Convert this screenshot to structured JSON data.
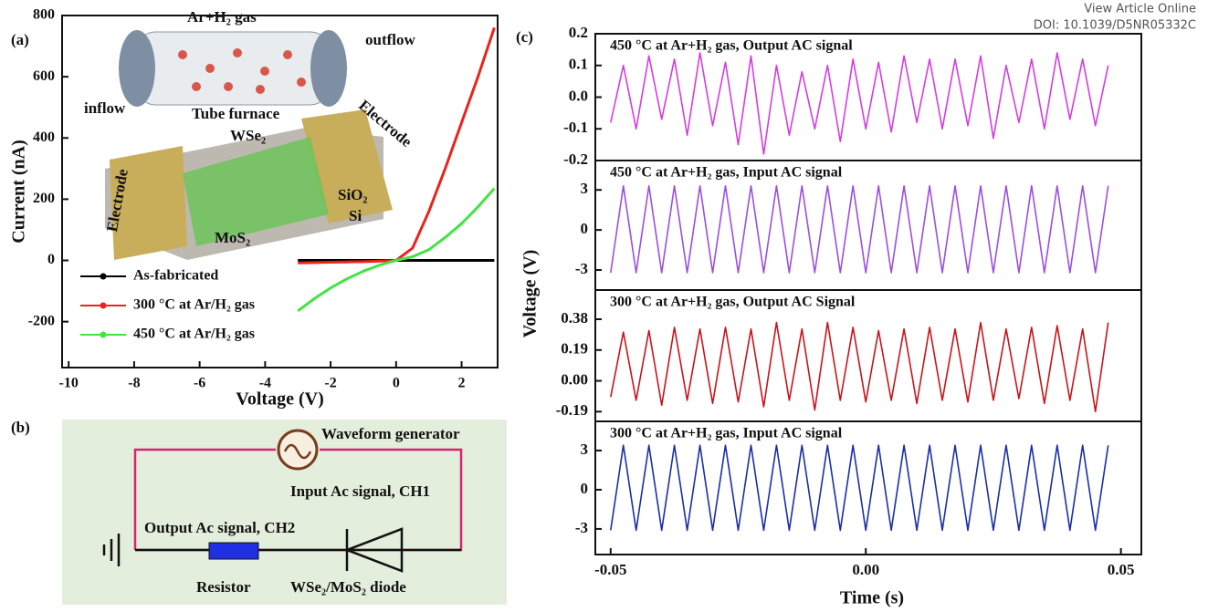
{
  "header": {
    "link": "View Article Online",
    "doi": "DOI: 10.1039/D5NR05332C"
  },
  "panel_a": {
    "label": "(a)",
    "illustration": {
      "gas": "Ar+H₂ gas",
      "outflow": "outflow",
      "inflow": "inflow",
      "furnace": "Tube furnace",
      "wse2": "WSe₂",
      "electrode_right": "Electrode",
      "electrode_left": "Electrode",
      "sio2": "SiO₂",
      "si": "Si",
      "mos2": "MoS₂"
    }
  },
  "panel_b": {
    "label": "(b)",
    "generator": "Waveform generator",
    "input": "Input Ac signal, CH1",
    "output": "Output Ac signal, CH2",
    "resistor": "Resistor",
    "diode": "WSe₂/MoS₂ diode"
  },
  "panel_c": {
    "label": "(c)",
    "ylabel": "Voltage (V)",
    "xlabel": "Time (s)"
  },
  "chart_data": [
    {
      "type": "line",
      "xlabel": "Voltage (V)",
      "ylabel": "Current (nA)",
      "xlim": [
        -10.2,
        3.1
      ],
      "ylim": [
        -350,
        800
      ],
      "xticks": [
        -10,
        -8,
        -6,
        -4,
        -2,
        0,
        2
      ],
      "yticks": [
        -200,
        0,
        200,
        400,
        600,
        800
      ],
      "legend": "lower left",
      "x": [
        -3,
        -2.5,
        -2,
        -1.5,
        -1,
        -0.5,
        0,
        0.5,
        1,
        1.5,
        2,
        2.5,
        3
      ],
      "series": [
        {
          "name": "As-fabricated",
          "color": "#000000",
          "values": [
            0,
            0,
            0,
            0,
            0,
            0,
            0,
            0,
            0,
            0,
            0,
            0,
            0
          ]
        },
        {
          "name": "300 °C at Ar/H₂ gas",
          "color": "#e8251d",
          "values": [
            -8,
            -7,
            -6,
            -5,
            -4,
            -2,
            0,
            40,
            160,
            300,
            450,
            600,
            760
          ]
        },
        {
          "name": "450 °C at Ar/H₂ gas",
          "color": "#44e344",
          "values": [
            -165,
            -125,
            -90,
            -60,
            -35,
            -15,
            0,
            12,
            35,
            75,
            120,
            175,
            235
          ]
        }
      ]
    },
    {
      "type": "line",
      "title": "450 °C at Ar+H₂ gas, Output AC signal",
      "xlim": [
        -0.053,
        0.054
      ],
      "ylim": [
        -0.2,
        0.2
      ],
      "yticks": [
        -0.2,
        -0.1,
        {
          "value": 0,
          "label": "0.0"
        },
        0.1,
        0.2
      ],
      "x": [
        -0.05,
        -0.0475,
        -0.045,
        -0.0425,
        -0.04,
        -0.0375,
        -0.035,
        -0.0325,
        -0.03,
        -0.0275,
        -0.025,
        -0.0225,
        -0.02,
        -0.0175,
        -0.015,
        -0.0125,
        -0.01,
        -0.0075,
        -0.005,
        -0.0025,
        0,
        0.0025,
        0.005,
        0.0075,
        0.01,
        0.0125,
        0.015,
        0.0175,
        0.02,
        0.0225,
        0.025,
        0.0275,
        0.03,
        0.0325,
        0.035,
        0.0375,
        0.04,
        0.0425,
        0.045,
        0.0475
      ],
      "series": [
        {
          "color": "#d43de0",
          "values": [
            -0.08,
            0.1,
            -0.1,
            0.13,
            -0.07,
            0.12,
            -0.12,
            0.14,
            -0.09,
            0.11,
            -0.15,
            0.13,
            -0.18,
            0.1,
            -0.12,
            0.08,
            -0.1,
            0.1,
            -0.14,
            0.12,
            -0.1,
            0.11,
            -0.11,
            0.13,
            -0.08,
            0.12,
            -0.1,
            0.12,
            -0.09,
            0.13,
            -0.13,
            0.1,
            -0.08,
            0.12,
            -0.1,
            0.14,
            -0.07,
            0.12,
            -0.09,
            0.1
          ]
        }
      ]
    },
    {
      "type": "line",
      "title": "450 °C at Ar+H₂ gas, Input AC signal",
      "xlim": [
        -0.053,
        0.054
      ],
      "ylim": [
        -4.5,
        5.2
      ],
      "yticks": [
        -3,
        0,
        3
      ],
      "x": [
        -0.05,
        -0.0475,
        -0.045,
        -0.0425,
        -0.04,
        -0.0375,
        -0.035,
        -0.0325,
        -0.03,
        -0.0275,
        -0.025,
        -0.0225,
        -0.02,
        -0.0175,
        -0.015,
        -0.0125,
        -0.01,
        -0.0075,
        -0.005,
        -0.0025,
        0,
        0.0025,
        0.005,
        0.0075,
        0.01,
        0.0125,
        0.015,
        0.0175,
        0.02,
        0.0225,
        0.025,
        0.0275,
        0.03,
        0.0325,
        0.035,
        0.0375,
        0.04,
        0.0425,
        0.045,
        0.0475
      ],
      "series": [
        {
          "color": "#9b4fe0",
          "values": [
            -3.2,
            3.3,
            -3.2,
            3.3,
            -3.2,
            3.3,
            -3.2,
            3.3,
            -3.2,
            3.3,
            -3.2,
            3.3,
            -3.2,
            3.3,
            -3.2,
            3.3,
            -3.2,
            3.3,
            -3.2,
            3.3,
            -3.2,
            3.3,
            -3.2,
            3.3,
            -3.2,
            3.3,
            -3.2,
            3.3,
            -3.2,
            3.3,
            -3.2,
            3.3,
            -3.2,
            3.3,
            -3.2,
            3.3,
            -3.2,
            3.3,
            -3.2,
            3.3
          ]
        }
      ]
    },
    {
      "type": "line",
      "title": "300 °C at Ar+H₂ gas, Output AC Signal",
      "xlim": [
        -0.053,
        0.054
      ],
      "ylim": [
        -0.25,
        0.56
      ],
      "yticks": [
        -0.19,
        {
          "value": 0,
          "label": "0.00"
        },
        0.19,
        0.38
      ],
      "x": [
        -0.05,
        -0.0475,
        -0.045,
        -0.0425,
        -0.04,
        -0.0375,
        -0.035,
        -0.0325,
        -0.03,
        -0.0275,
        -0.025,
        -0.0225,
        -0.02,
        -0.0175,
        -0.015,
        -0.0125,
        -0.01,
        -0.0075,
        -0.005,
        -0.0025,
        0,
        0.0025,
        0.005,
        0.0075,
        0.01,
        0.0125,
        0.015,
        0.0175,
        0.02,
        0.0225,
        0.025,
        0.0275,
        0.03,
        0.0325,
        0.035,
        0.0375,
        0.04,
        0.0425,
        0.045,
        0.0475
      ],
      "series": [
        {
          "color": "#c8141a",
          "values": [
            -0.1,
            0.3,
            -0.12,
            0.31,
            -0.15,
            0.33,
            -0.12,
            0.32,
            -0.14,
            0.33,
            -0.13,
            0.32,
            -0.16,
            0.36,
            -0.12,
            0.32,
            -0.18,
            0.36,
            -0.12,
            0.33,
            -0.13,
            0.31,
            -0.12,
            0.32,
            -0.14,
            0.33,
            -0.12,
            0.32,
            -0.13,
            0.36,
            -0.12,
            0.32,
            -0.11,
            0.33,
            -0.14,
            0.34,
            -0.12,
            0.32,
            -0.19,
            0.36
          ]
        }
      ]
    },
    {
      "type": "line",
      "title": "300 °C at Ar+H₂ gas, Input AC signal",
      "xlim": [
        -0.053,
        0.054
      ],
      "ylim": [
        -4.96,
        5.23
      ],
      "yticks": [
        -3,
        0,
        3
      ],
      "xticks": [
        -0.05,
        {
          "value": 0,
          "label": "0.00"
        },
        0.05
      ],
      "x": [
        -0.05,
        -0.0475,
        -0.045,
        -0.0425,
        -0.04,
        -0.0375,
        -0.035,
        -0.0325,
        -0.03,
        -0.0275,
        -0.025,
        -0.0225,
        -0.02,
        -0.0175,
        -0.015,
        -0.0125,
        -0.01,
        -0.0075,
        -0.005,
        -0.0025,
        0,
        0.0025,
        0.005,
        0.0075,
        0.01,
        0.0125,
        0.015,
        0.0175,
        0.02,
        0.0225,
        0.025,
        0.0275,
        0.03,
        0.0325,
        0.035,
        0.0375,
        0.04,
        0.0425,
        0.045,
        0.0475
      ],
      "series": [
        {
          "color": "#1a2fa8",
          "values": [
            -3.1,
            3.4,
            -3.1,
            3.4,
            -3.1,
            3.4,
            -3.1,
            3.4,
            -3.1,
            3.4,
            -3.1,
            3.4,
            -3.1,
            3.4,
            -3.1,
            3.4,
            -3.1,
            3.4,
            -3.1,
            3.4,
            -3.1,
            3.4,
            -3.1,
            3.4,
            -3.1,
            3.4,
            -3.1,
            3.4,
            -3.1,
            3.4,
            -3.1,
            3.4,
            -3.1,
            3.4,
            -3.1,
            3.4,
            -3.1,
            3.4,
            -3.1,
            3.4
          ]
        }
      ]
    }
  ]
}
